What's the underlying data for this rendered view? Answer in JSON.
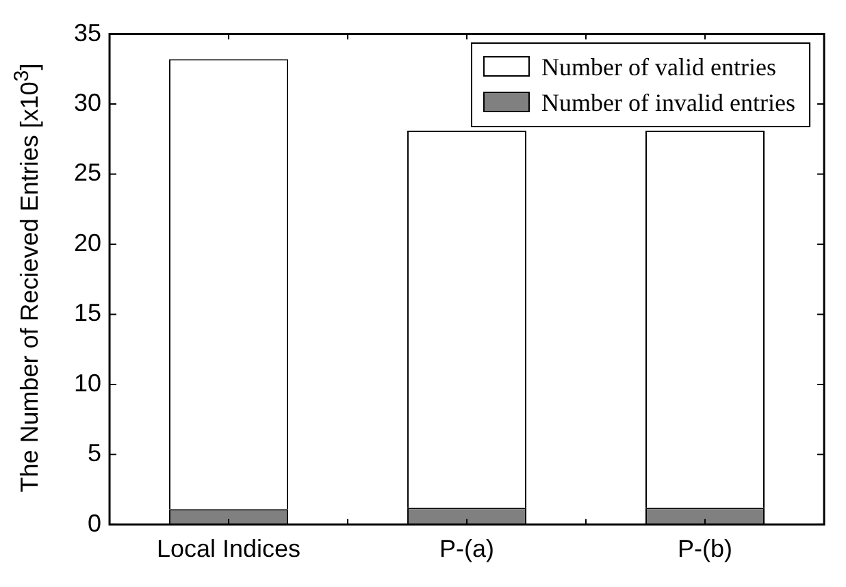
{
  "chart_data": {
    "type": "bar",
    "stacked": true,
    "ylabel": "The Number of Recieved Entries [x10$^{3}$]",
    "categories": [
      "Local Indices",
      "P-(a)",
      "P-(b)"
    ],
    "series": [
      {
        "name": "Number of invalid entries",
        "color": "#808080",
        "values": [
          1.1,
          1.2,
          1.2
        ]
      },
      {
        "name": "Number of valid entries",
        "color": "#ffffff",
        "values": [
          32.1,
          26.9,
          26.9
        ]
      }
    ],
    "ylim": [
      0,
      35
    ],
    "yticks": [
      0,
      5,
      10,
      15,
      20,
      25,
      30,
      35
    ],
    "grid": false,
    "legend": "top right"
  }
}
